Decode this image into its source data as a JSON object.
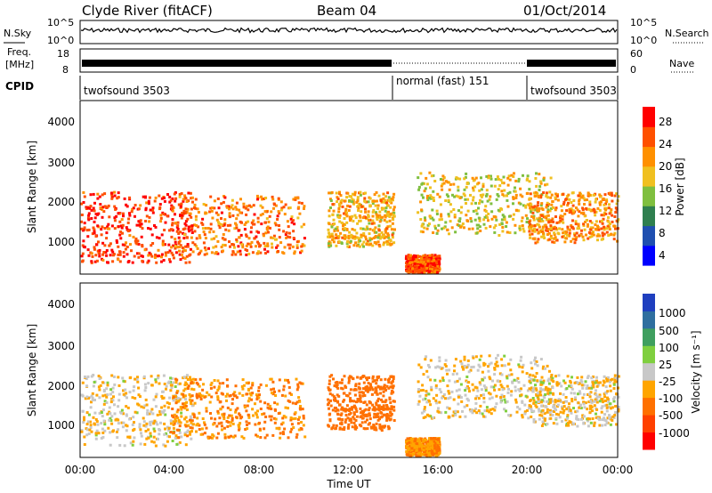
{
  "header": {
    "station": "Clyde River (fitACF)",
    "beam": "Beam 04",
    "date": "01/Oct/2014"
  },
  "sky_panel": {
    "left_label": "N.Sky",
    "right_label": "N.Search",
    "left_ticks": [
      "10^5",
      "10^0"
    ],
    "right_ticks": [
      "10^5",
      "10^0"
    ]
  },
  "freq_panel": {
    "left_label_line1": "Freq.",
    "left_label_line2": "[MHz]",
    "left_ticks": [
      "18",
      "8"
    ],
    "right_label": "Nave",
    "right_ticks": [
      "60",
      "0"
    ]
  },
  "cpid_panel": {
    "label": "CPID",
    "modes": [
      {
        "name": "twofsound 3503",
        "start_hour": 0,
        "end_hour": 14
      },
      {
        "name": "normal (fast) 151",
        "start_hour": 14,
        "end_hour": 20
      },
      {
        "name": "twofsound 3503",
        "start_hour": 20,
        "end_hour": 24
      }
    ]
  },
  "power_panel": {
    "ylabel": "Slant Range [km]",
    "yticks": [
      "4000",
      "3000",
      "2000",
      "1000"
    ],
    "colorbar_label": "Power [dB]",
    "colorbar_ticks": [
      "28",
      "24",
      "20",
      "16",
      "12",
      "8",
      "4"
    ],
    "colorbar_colors": [
      "#0000ff",
      "#1f4fb0",
      "#2f7f4f",
      "#7fbf3f",
      "#f0c020",
      "#ff9000",
      "#ff5000",
      "#ff0000"
    ]
  },
  "velocity_panel": {
    "ylabel": "Slant Range [km]",
    "yticks": [
      "4000",
      "3000",
      "2000",
      "1000"
    ],
    "colorbar_label": "Velocity [m s⁻¹]",
    "colorbar_ticks": [
      "1000",
      "500",
      "100",
      "25",
      "-25",
      "-100",
      "-500",
      "-1000"
    ],
    "colorbar_colors": [
      "#1f3fbf",
      "#2f6f9f",
      "#3f9f5f",
      "#7fcf3f",
      "#c8c8c8",
      "#ffa500",
      "#ff7000",
      "#ff4000",
      "#ff0000"
    ]
  },
  "x_axis": {
    "label": "Time UT",
    "ticks": [
      "00:00",
      "04:00",
      "08:00",
      "12:00",
      "16:00",
      "20:00",
      "00:00"
    ]
  },
  "chart_data": {
    "type": "heatmap",
    "x_range_hours": [
      0,
      24
    ],
    "y_range_km": [
      180,
      4600
    ],
    "scatter_regions": [
      {
        "t": [
          0,
          5
        ],
        "r": [
          500,
          2300
        ],
        "power": 26,
        "velocity": -25
      },
      {
        "t": [
          4,
          10
        ],
        "r": [
          700,
          2200
        ],
        "power": 22,
        "velocity": -100
      },
      {
        "t": [
          11,
          14
        ],
        "r": [
          900,
          2300
        ],
        "power": 18,
        "velocity": -300
      },
      {
        "t": [
          14.5,
          16
        ],
        "r": [
          250,
          700
        ],
        "power": 24,
        "velocity": -100
      },
      {
        "t": [
          15,
          21
        ],
        "r": [
          1200,
          2800
        ],
        "power": 16,
        "velocity": -25
      },
      {
        "t": [
          20,
          24
        ],
        "r": [
          1000,
          2300
        ],
        "power": 20,
        "velocity": -25
      }
    ]
  }
}
